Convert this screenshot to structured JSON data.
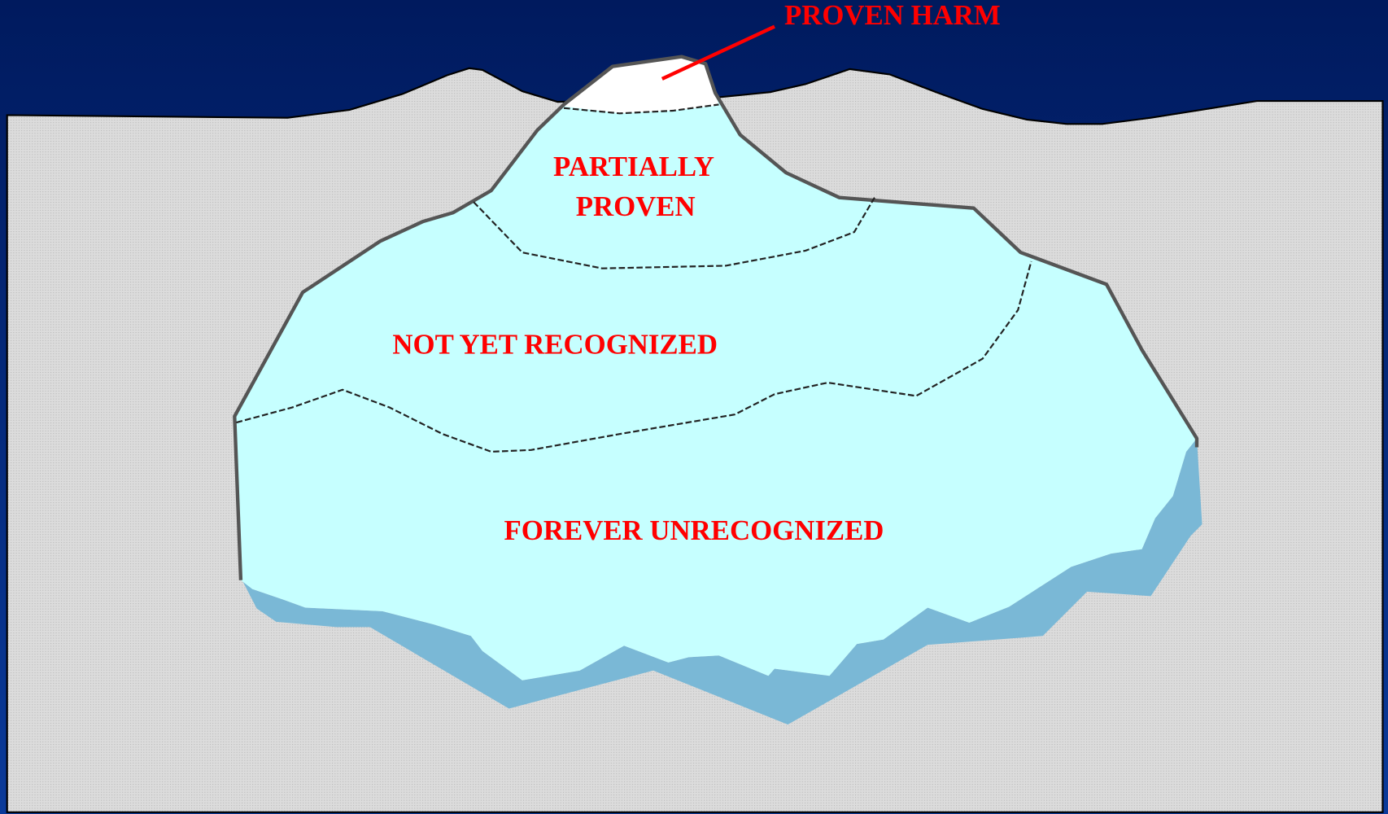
{
  "labels": {
    "proven_harm": "PROVEN HARM",
    "partially_proven": [
      "PARTIALLY",
      "PROVEN"
    ],
    "not_yet_recognized": "NOT YET RECOGNIZED",
    "forever_unrecognized": "FOREVER UNRECOGNIZED"
  }
}
